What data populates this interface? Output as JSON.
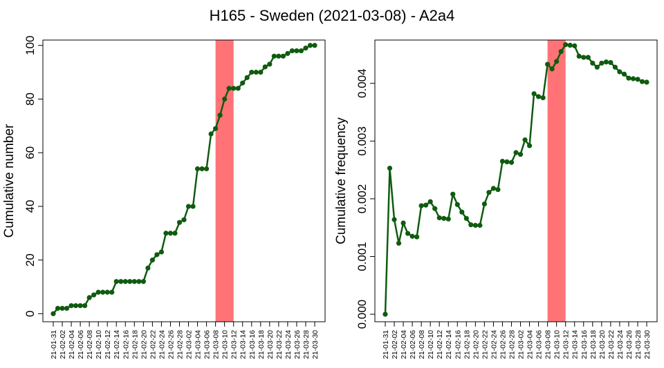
{
  "title": "H165 - Sweden (2021-03-08) - A2a4",
  "highlight_color": "#ff7377",
  "line_color": "#0f5b0f",
  "chart_data": [
    {
      "type": "line",
      "ylabel": "Cumulative number",
      "ylim": [
        -3,
        102
      ],
      "yticks": [
        0,
        20,
        40,
        60,
        80,
        100
      ],
      "ytick_labels": [
        "0",
        "20",
        "40",
        "60",
        "80",
        "100"
      ],
      "highlight_range": [
        "21-03-08",
        "21-03-12"
      ],
      "x": [
        "21-01-31",
        "21-02-01",
        "21-02-02",
        "21-02-03",
        "21-02-04",
        "21-02-05",
        "21-02-06",
        "21-02-07",
        "21-02-08",
        "21-02-09",
        "21-02-10",
        "21-02-11",
        "21-02-12",
        "21-02-13",
        "21-02-14",
        "21-02-15",
        "21-02-16",
        "21-02-17",
        "21-02-18",
        "21-02-19",
        "21-02-20",
        "21-02-21",
        "21-02-22",
        "21-02-23",
        "21-02-24",
        "21-02-25",
        "21-02-26",
        "21-02-27",
        "21-02-28",
        "21-03-01",
        "21-03-02",
        "21-03-03",
        "21-03-04",
        "21-03-05",
        "21-03-06",
        "21-03-07",
        "21-03-08",
        "21-03-09",
        "21-03-10",
        "21-03-11",
        "21-03-12",
        "21-03-13",
        "21-03-14",
        "21-03-15",
        "21-03-16",
        "21-03-17",
        "21-03-18",
        "21-03-19",
        "21-03-20",
        "21-03-21",
        "21-03-22",
        "21-03-23",
        "21-03-24",
        "21-03-25",
        "21-03-26",
        "21-03-27",
        "21-03-28",
        "21-03-29",
        "21-03-30"
      ],
      "values": [
        0,
        2,
        2,
        2,
        3,
        3,
        3,
        3,
        6,
        7,
        8,
        8,
        8,
        8,
        12,
        12,
        12,
        12,
        12,
        12,
        12,
        17,
        20,
        22,
        23,
        30,
        30,
        30,
        34,
        35,
        40,
        40,
        54,
        54,
        54,
        67,
        69,
        74,
        80,
        84,
        84,
        84,
        86,
        88,
        90,
        90,
        90,
        92,
        93,
        96,
        96,
        96,
        97,
        98,
        98,
        98,
        99,
        100,
        100
      ],
      "xtick_labels": [
        "21-01-31",
        "21-02-02",
        "21-02-04",
        "21-02-06",
        "21-02-08",
        "21-02-10",
        "21-02-12",
        "21-02-14",
        "21-02-16",
        "21-02-18",
        "21-02-20",
        "21-02-22",
        "21-02-24",
        "21-02-26",
        "21-02-28",
        "21-03-02",
        "21-03-04",
        "21-03-06",
        "21-03-08",
        "21-03-10",
        "21-03-12",
        "21-03-14",
        "21-03-16",
        "21-03-18",
        "21-03-20",
        "21-03-22",
        "21-03-24",
        "21-03-26",
        "21-03-28",
        "21-03-30"
      ]
    },
    {
      "type": "line",
      "ylabel": "Cumulative frequency",
      "ylim": [
        -0.00013,
        0.00475
      ],
      "yticks": [
        0,
        0.001,
        0.002,
        0.003,
        0.004
      ],
      "ytick_labels": [
        "0.000",
        "0.001",
        "0.002",
        "0.003",
        "0.004"
      ],
      "highlight_range": [
        "21-03-08",
        "21-03-12"
      ],
      "x": [
        "21-01-31",
        "21-02-01",
        "21-02-02",
        "21-02-03",
        "21-02-04",
        "21-02-05",
        "21-02-06",
        "21-02-07",
        "21-02-08",
        "21-02-09",
        "21-02-10",
        "21-02-11",
        "21-02-12",
        "21-02-13",
        "21-02-14",
        "21-02-15",
        "21-02-16",
        "21-02-17",
        "21-02-18",
        "21-02-19",
        "21-02-20",
        "21-02-21",
        "21-02-22",
        "21-02-23",
        "21-02-24",
        "21-02-25",
        "21-02-26",
        "21-02-27",
        "21-02-28",
        "21-03-01",
        "21-03-02",
        "21-03-03",
        "21-03-04",
        "21-03-05",
        "21-03-06",
        "21-03-07",
        "21-03-08",
        "21-03-09",
        "21-03-10",
        "21-03-11",
        "21-03-12",
        "21-03-13",
        "21-03-14",
        "21-03-15",
        "21-03-16",
        "21-03-17",
        "21-03-18",
        "21-03-19",
        "21-03-20",
        "21-03-21",
        "21-03-22",
        "21-03-23",
        "21-03-24",
        "21-03-25",
        "21-03-26",
        "21-03-27",
        "21-03-28",
        "21-03-29",
        "21-03-30"
      ],
      "values": [
        0,
        0.00253,
        0.00164,
        0.00123,
        0.00158,
        0.0014,
        0.00135,
        0.00134,
        0.00188,
        0.00189,
        0.00195,
        0.00183,
        0.00167,
        0.00166,
        0.00165,
        0.00208,
        0.0019,
        0.00177,
        0.00166,
        0.00155,
        0.00154,
        0.00154,
        0.00191,
        0.00211,
        0.00218,
        0.00216,
        0.00265,
        0.00264,
        0.00263,
        0.0028,
        0.00277,
        0.00302,
        0.00292,
        0.00382,
        0.00377,
        0.00375,
        0.00433,
        0.00425,
        0.00438,
        0.00455,
        0.00467,
        0.00466,
        0.00465,
        0.00447,
        0.00445,
        0.00445,
        0.00435,
        0.00428,
        0.00435,
        0.00437,
        0.00436,
        0.00428,
        0.0042,
        0.00416,
        0.00409,
        0.00408,
        0.00407,
        0.00403,
        0.00402
      ],
      "xtick_labels": [
        "21-01-31",
        "21-02-02",
        "21-02-04",
        "21-02-06",
        "21-02-08",
        "21-02-10",
        "21-02-12",
        "21-02-14",
        "21-02-16",
        "21-02-18",
        "21-02-20",
        "21-02-22",
        "21-02-24",
        "21-02-26",
        "21-02-28",
        "21-03-02",
        "21-03-04",
        "21-03-06",
        "21-03-08",
        "21-03-10",
        "21-03-12",
        "21-03-14",
        "21-03-16",
        "21-03-18",
        "21-03-20",
        "21-03-22",
        "21-03-24",
        "21-03-26",
        "21-03-28",
        "21-03-30"
      ]
    }
  ]
}
